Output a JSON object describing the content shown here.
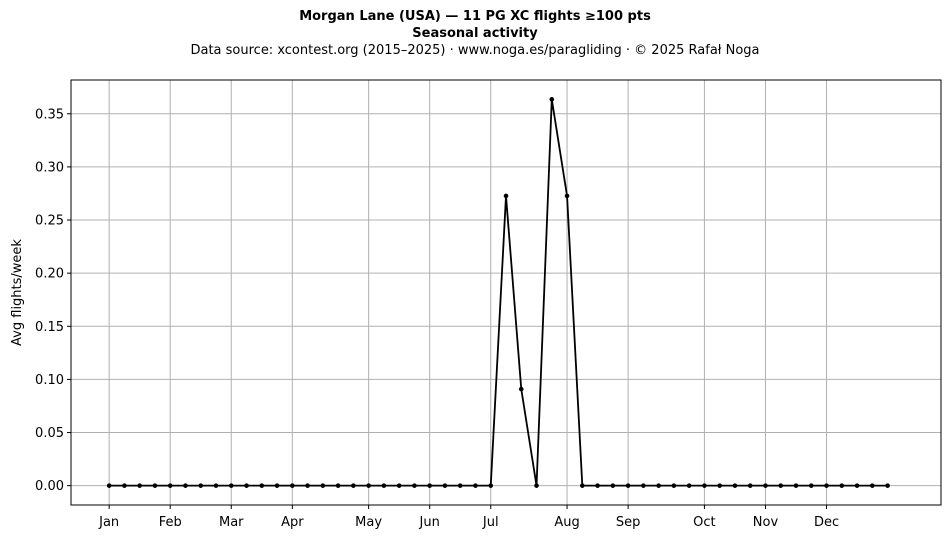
{
  "header": {
    "title_line1": "Morgan Lane (USA)  —  11 PG XC flights ≥100 pts",
    "title_line2": "Seasonal activity",
    "source_line": "Data source: xcontest.org (2015–2025)  ·  www.noga.es/paragliding  ·  © 2025 Rafał Noga"
  },
  "chart_data": {
    "type": "line",
    "ylabel": "Avg flights/week",
    "xlabel": "",
    "ylim": [
      -0.0182,
      0.3818
    ],
    "yticks": [
      0.0,
      0.05,
      0.1,
      0.15,
      0.2,
      0.25,
      0.3,
      0.35
    ],
    "ytick_labels": [
      "0.00",
      "0.05",
      "0.10",
      "0.15",
      "0.20",
      "0.25",
      "0.30",
      "0.35"
    ],
    "xlim": [
      -2.5,
      54.5
    ],
    "xticks": [
      {
        "label": "Jan",
        "week": 0
      },
      {
        "label": "Feb",
        "week": 4
      },
      {
        "label": "Mar",
        "week": 8
      },
      {
        "label": "Apr",
        "week": 12
      },
      {
        "label": "May",
        "week": 17
      },
      {
        "label": "Jun",
        "week": 21
      },
      {
        "label": "Jul",
        "week": 25
      },
      {
        "label": "Aug",
        "week": 30
      },
      {
        "label": "Sep",
        "week": 34
      },
      {
        "label": "Oct",
        "week": 39
      },
      {
        "label": "Nov",
        "week": 43
      },
      {
        "label": "Dec",
        "week": 47
      }
    ],
    "grid": true,
    "color": "#000000",
    "series": [
      {
        "values": [
          0,
          0,
          0,
          0,
          0,
          0,
          0,
          0,
          0,
          0,
          0,
          0,
          0,
          0,
          0,
          0,
          0,
          0,
          0,
          0,
          0,
          0,
          0,
          0,
          0,
          0,
          0.2727,
          0.0909,
          0,
          0.3636,
          0.2727,
          0,
          0,
          0,
          0,
          0,
          0,
          0,
          0,
          0,
          0,
          0,
          0,
          0,
          0,
          0,
          0,
          0,
          0,
          0,
          0,
          0
        ]
      }
    ]
  }
}
